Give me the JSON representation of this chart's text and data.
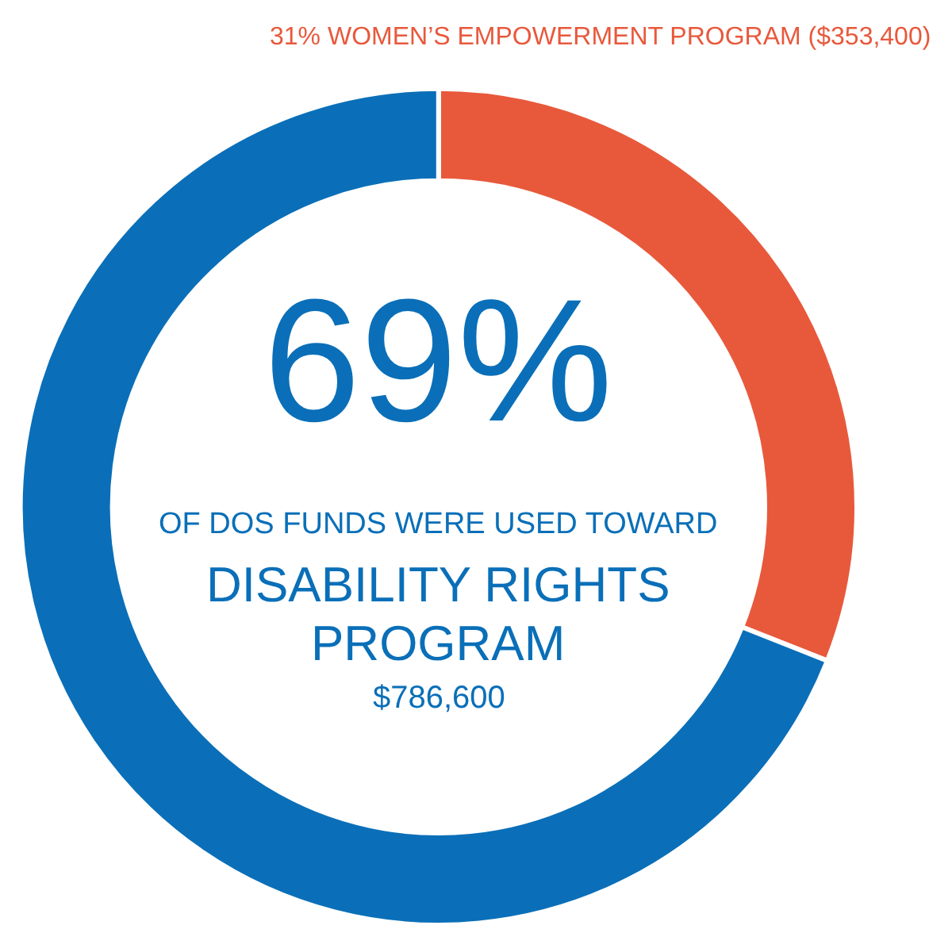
{
  "chart_data": {
    "type": "donut",
    "categories": [
      null,
      null
    ],
    "values": [
      31,
      69
    ],
    "colors": [
      "#e8593c",
      "#0a6fb8"
    ],
    "value_labels": [
      "31% WOMEN’S EMPOWERMENT PROGRAM ($353,400)",
      null
    ],
    "annotations": [
      "69%",
      "OF DOS FUNDS WERE USED TOWARD",
      "DISABILITY RIGHTS",
      "PROGRAM",
      "$786,600"
    ],
    "legend": false
  }
}
